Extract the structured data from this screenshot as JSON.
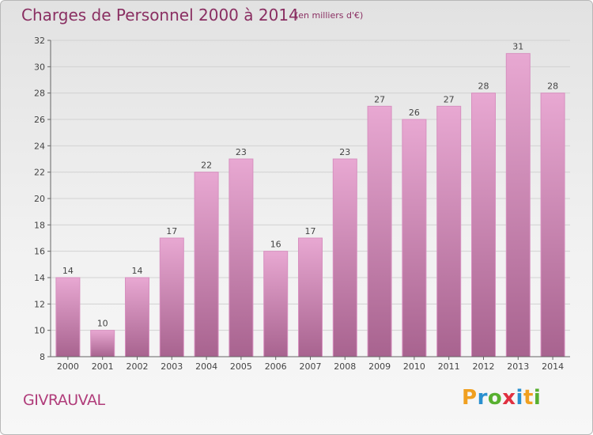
{
  "chart_data": {
    "type": "bar",
    "title": "Charges de Personnel 2000 à 2014",
    "subtitle": "(en milliers d'€)",
    "categories": [
      "2000",
      "2001",
      "2002",
      "2003",
      "2004",
      "2005",
      "2006",
      "2007",
      "2008",
      "2009",
      "2010",
      "2011",
      "2012",
      "2013",
      "2014"
    ],
    "values": [
      14,
      10,
      14,
      17,
      22,
      23,
      16,
      17,
      23,
      27,
      26,
      27,
      28,
      31,
      28
    ],
    "ylim": [
      8,
      32
    ],
    "yticks": [
      8,
      10,
      12,
      14,
      16,
      18,
      20,
      22,
      24,
      26,
      28,
      30,
      32
    ],
    "grid": true,
    "bar_color_top": "#e8a8d2",
    "bar_color_bottom": "#a8638f"
  },
  "commune": "GIVRAUVAL",
  "logo": {
    "letters": [
      "P",
      "r",
      "o",
      "x",
      "i",
      "t",
      "i"
    ],
    "colors": [
      "#f0a020",
      "#2a90d0",
      "#58b030",
      "#e03040",
      "#2a90d0",
      "#f0a020",
      "#58b030"
    ]
  }
}
